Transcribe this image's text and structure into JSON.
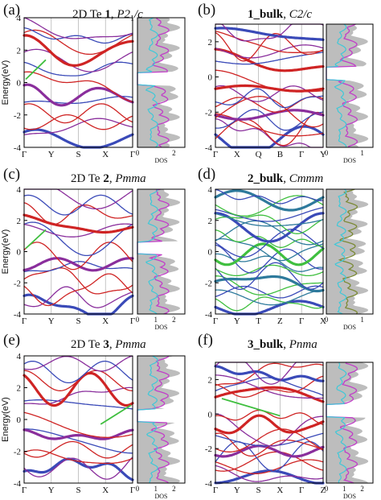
{
  "colors": {
    "up": "#cf2424",
    "down": "#3a4ab8",
    "purple": "#8a2e9c",
    "green": "#3fbf3f",
    "dos_total": "#bdbdbd",
    "dos_magenta": "#c13ec8",
    "dos_cyan": "#3fc8d8",
    "dos_olive": "#7b8a36",
    "axis": "#000000",
    "grid": "#b8b8b8"
  },
  "chart_data": [
    {
      "type": "line",
      "panel": "(a)",
      "title_plain": "2D Te ",
      "title_bold": "1",
      "title_sep": ", ",
      "title_ital": "P2",
      "title_sub": "1",
      "title_end": "/c",
      "ylabel": "Energy(eV)",
      "ylim": [
        -4,
        4
      ],
      "yticks": [
        "4",
        "2",
        "0",
        "-2",
        "-4"
      ],
      "kpoints": [
        "Γ",
        "Y",
        "S",
        "X",
        "Γ"
      ],
      "dos_label": "DOS",
      "dos_ticks": [
        "0",
        "2"
      ],
      "dos_components": [
        "total",
        "magenta",
        "cyan"
      ],
      "bands_described": "valence bands between -4 and -0.2 eV, conduction bands between 0.8 and 3.5 eV, indirect gap"
    },
    {
      "type": "line",
      "panel": "(b)",
      "title_plain": "",
      "title_bold": "1_bulk",
      "title_sep": ", ",
      "title_ital": "C2",
      "title_sub": "",
      "title_end": "/c",
      "ylabel": "",
      "ylim": [
        -4,
        3
      ],
      "yticks": [
        "2",
        "0",
        "-2",
        "-4"
      ],
      "kpoints": [
        "Γ",
        "X",
        "Q",
        "B",
        "Γ",
        "Y"
      ],
      "dos_label": "DOS",
      "dos_ticks": [
        "0",
        "1"
      ],
      "dos_components": [
        "total",
        "magenta",
        "cyan"
      ],
      "bands_described": "dense bulk bands, small gap near 0 eV"
    },
    {
      "type": "line",
      "panel": "(c)",
      "title_plain": "2D Te ",
      "title_bold": "2",
      "title_sep": ", ",
      "title_ital": "Pmma",
      "title_sub": "",
      "title_end": "",
      "ylabel": "Energy(eV)",
      "ylim": [
        -4,
        4
      ],
      "yticks": [
        "4",
        "2",
        "0",
        "-2",
        "-4"
      ],
      "kpoints": [
        "Γ",
        "Y",
        "S",
        "X",
        "Γ"
      ],
      "dos_label": "DOS",
      "dos_ticks": [
        "0",
        "1",
        "2"
      ],
      "dos_components": [
        "total",
        "magenta",
        "cyan"
      ],
      "bands_described": "conduction bands 1.5-3.5 eV, valence bands -4 to -0.2 eV"
    },
    {
      "type": "line",
      "panel": "(d)",
      "title_plain": "",
      "title_bold": "2_bulk",
      "title_sep": ", ",
      "title_ital": "Cmmm",
      "title_sub": "",
      "title_end": "",
      "ylabel": "",
      "ylim": [
        -4,
        4
      ],
      "yticks": [
        "4",
        "2",
        "0",
        "-2",
        "-4"
      ],
      "kpoints": [
        "Γ",
        "Y",
        "T",
        "Z",
        "Γ",
        "X"
      ],
      "dos_label": "DOS",
      "dos_ticks": [
        "0",
        "1"
      ],
      "dos_components": [
        "total",
        "olive",
        "cyan"
      ],
      "bands_described": "metallic bulk, green and blue bands crossing 0 eV"
    },
    {
      "type": "line",
      "panel": "(e)",
      "title_plain": "2D Te ",
      "title_bold": "3",
      "title_sep": ", ",
      "title_ital": "Pmma",
      "title_sub": "",
      "title_end": "",
      "ylabel": "Energy(eV)",
      "ylim": [
        -4,
        4
      ],
      "yticks": [
        "4",
        "2",
        "0",
        "-2",
        "-4"
      ],
      "kpoints": [
        "Γ",
        "Y",
        "S",
        "X",
        "Γ"
      ],
      "dos_label": "DOS",
      "dos_ticks": [
        "0",
        "1",
        "2"
      ],
      "dos_components": [
        "total",
        "magenta",
        "cyan"
      ],
      "bands_described": "conduction bands 0.5-3.5 eV, valence bands -4 to -0.3 eV"
    },
    {
      "type": "line",
      "panel": "(f)",
      "title_plain": "",
      "title_bold": "3_bulk",
      "title_sep": ", ",
      "title_ital": "Pnma",
      "title_sub": "",
      "title_end": "",
      "ylabel": "",
      "ylim": [
        -4,
        3
      ],
      "yticks": [
        "2",
        "0",
        "-2",
        "-4"
      ],
      "kpoints": [
        "Γ",
        "Y",
        "S",
        "X",
        "Γ",
        "Z"
      ],
      "dos_label": "DOS",
      "dos_ticks": [
        "0",
        "1",
        "2"
      ],
      "dos_components": [
        "total",
        "magenta",
        "cyan"
      ],
      "bands_described": "bulk bands with gap above 0 eV"
    }
  ]
}
